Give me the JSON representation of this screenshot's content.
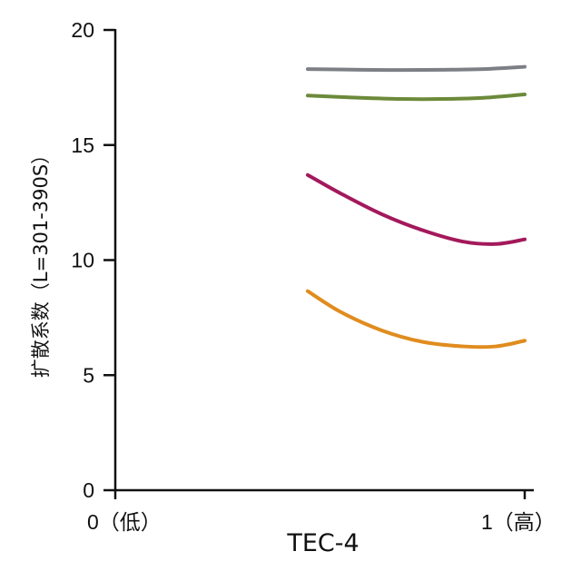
{
  "chart_data": {
    "type": "line",
    "xlabel": "TEC-4",
    "ylabel": "扩散系数（L=301-390S）",
    "xlim": [
      0,
      1
    ],
    "ylim": [
      0,
      20
    ],
    "x_tick_labels": [
      "0（低）",
      "1（高）"
    ],
    "y_ticks": [
      0,
      5,
      10,
      15,
      20
    ],
    "series": [
      {
        "color": "#7d7f86",
        "x": [
          0.47,
          0.6,
          0.7,
          0.8,
          0.9,
          1.0
        ],
        "y": [
          18.3,
          18.27,
          18.26,
          18.27,
          18.3,
          18.4
        ]
      },
      {
        "color": "#6c8a3a",
        "x": [
          0.47,
          0.6,
          0.7,
          0.8,
          0.9,
          1.0
        ],
        "y": [
          17.15,
          17.05,
          17.0,
          17.0,
          17.05,
          17.2
        ]
      },
      {
        "color": "#a3195b",
        "x": [
          0.47,
          0.55,
          0.65,
          0.75,
          0.85,
          0.93,
          1.0
        ],
        "y": [
          13.7,
          12.9,
          12.0,
          11.3,
          10.8,
          10.7,
          10.9
        ]
      },
      {
        "color": "#e08c1e",
        "x": [
          0.47,
          0.55,
          0.65,
          0.75,
          0.85,
          0.93,
          1.0
        ],
        "y": [
          8.65,
          7.75,
          6.95,
          6.45,
          6.25,
          6.25,
          6.5
        ]
      }
    ]
  }
}
